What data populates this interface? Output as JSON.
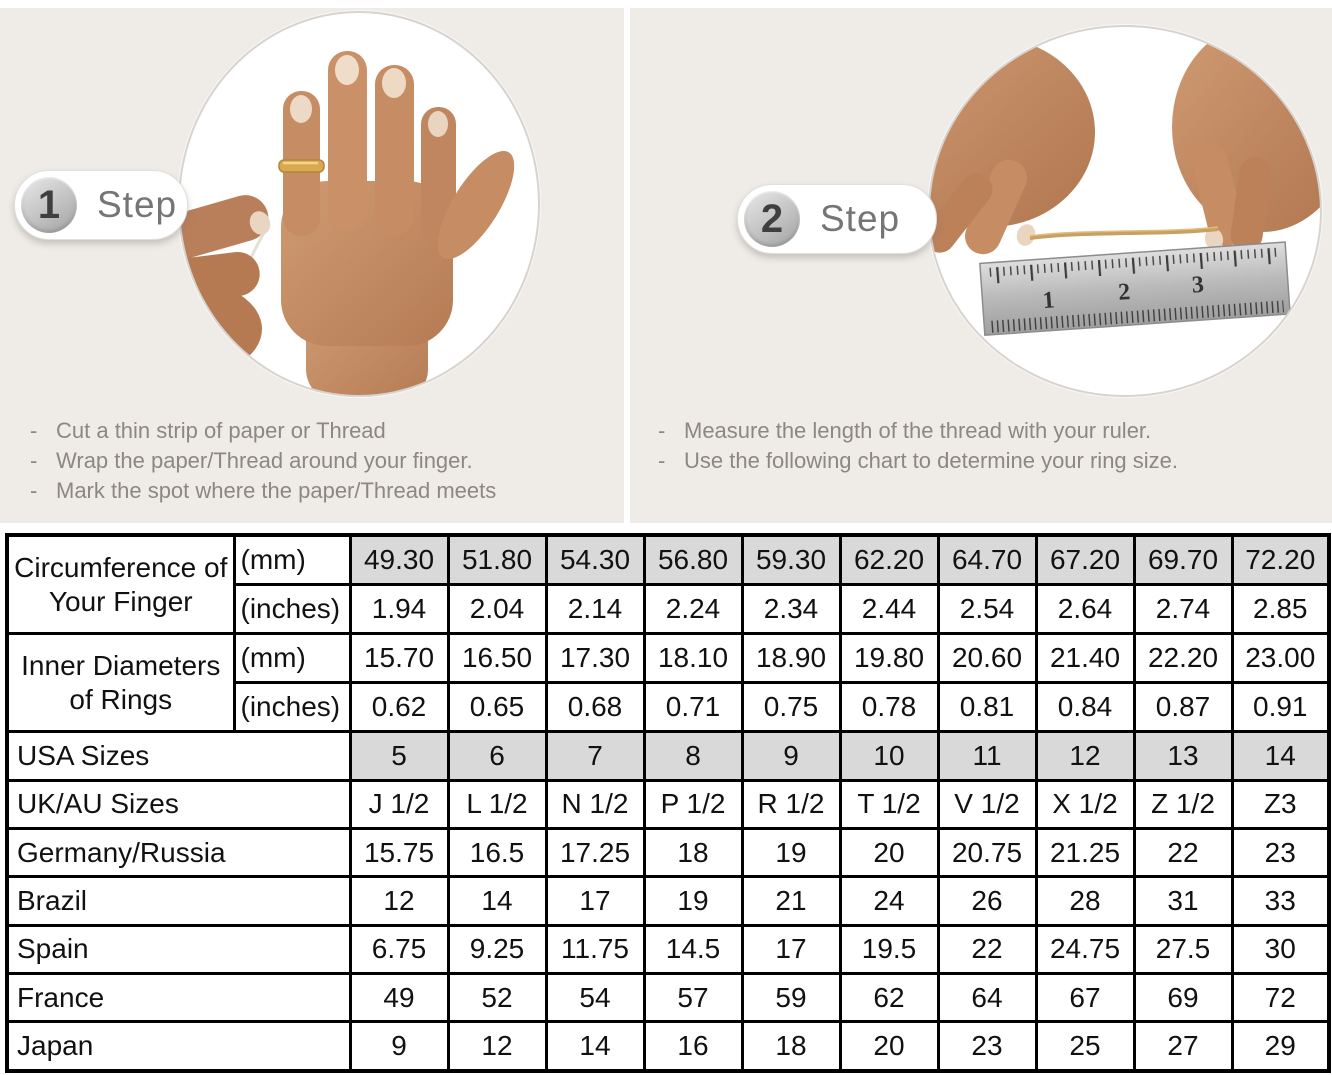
{
  "colors": {
    "panel_bg": "#efece7",
    "highlight_cell": "#d9d9d9",
    "table_border": "#000000",
    "instruction_text": "#8d8781",
    "step_text": "#757575",
    "skin_tone": "#c28963",
    "gold_ring": "#d8a94f",
    "ruler_steel": "#c0c0c0"
  },
  "steps": [
    {
      "number": "1",
      "label": "Step",
      "bullet": "-",
      "illustration": "hand-with-ring-photo",
      "instructions": [
        "Cut a thin strip of paper or Thread",
        "Wrap the paper/Thread around your finger.",
        "Mark the spot where the paper/Thread meets"
      ]
    },
    {
      "number": "2",
      "label": "Step",
      "bullet": "-",
      "illustration": "hands-measuring-thread-on-ruler-photo",
      "instructions": [
        "Measure the length of the thread with your ruler.",
        "Use the following chart to determine your ring size."
      ]
    }
  ],
  "illustrations": {
    "ruler_numbers": [
      "1",
      "2",
      "3"
    ]
  },
  "table": {
    "row_groups": [
      {
        "label": "Circumference of Your Finger",
        "rows": [
          {
            "unit": "(mm)",
            "highlight": true,
            "values": [
              "49.30",
              "51.80",
              "54.30",
              "56.80",
              "59.30",
              "62.20",
              "64.70",
              "67.20",
              "69.70",
              "72.20"
            ]
          },
          {
            "unit": "(inches)",
            "highlight": false,
            "values": [
              "1.94",
              "2.04",
              "2.14",
              "2.24",
              "2.34",
              "2.44",
              "2.54",
              "2.64",
              "2.74",
              "2.85"
            ]
          }
        ]
      },
      {
        "label": "Inner Diameters of Rings",
        "rows": [
          {
            "unit": "(mm)",
            "highlight": false,
            "values": [
              "15.70",
              "16.50",
              "17.30",
              "18.10",
              "18.90",
              "19.80",
              "20.60",
              "21.40",
              "22.20",
              "23.00"
            ]
          },
          {
            "unit": "(inches)",
            "highlight": false,
            "values": [
              "0.62",
              "0.65",
              "0.68",
              "0.71",
              "0.75",
              "0.78",
              "0.81",
              "0.84",
              "0.87",
              "0.91"
            ]
          }
        ]
      }
    ],
    "size_rows": [
      {
        "label": "USA Sizes",
        "highlight": true,
        "values": [
          "5",
          "6",
          "7",
          "8",
          "9",
          "10",
          "11",
          "12",
          "13",
          "14"
        ]
      },
      {
        "label": "UK/AU Sizes",
        "highlight": false,
        "values": [
          "J 1/2",
          "L 1/2",
          "N 1/2",
          "P 1/2",
          "R 1/2",
          "T 1/2",
          "V 1/2",
          "X 1/2",
          "Z 1/2",
          "Z3"
        ]
      },
      {
        "label": "Germany/Russia",
        "highlight": false,
        "values": [
          "15.75",
          "16.5",
          "17.25",
          "18",
          "19",
          "20",
          "20.75",
          "21.25",
          "22",
          "23"
        ]
      },
      {
        "label": "Brazil",
        "highlight": false,
        "values": [
          "12",
          "14",
          "17",
          "19",
          "21",
          "24",
          "26",
          "28",
          "31",
          "33"
        ]
      },
      {
        "label": "Spain",
        "highlight": false,
        "values": [
          "6.75",
          "9.25",
          "11.75",
          "14.5",
          "17",
          "19.5",
          "22",
          "24.75",
          "27.5",
          "30"
        ]
      },
      {
        "label": "France",
        "highlight": false,
        "values": [
          "49",
          "52",
          "54",
          "57",
          "59",
          "62",
          "64",
          "67",
          "69",
          "72"
        ]
      },
      {
        "label": "Japan",
        "highlight": false,
        "values": [
          "9",
          "12",
          "14",
          "16",
          "18",
          "20",
          "23",
          "25",
          "27",
          "29"
        ]
      }
    ]
  }
}
